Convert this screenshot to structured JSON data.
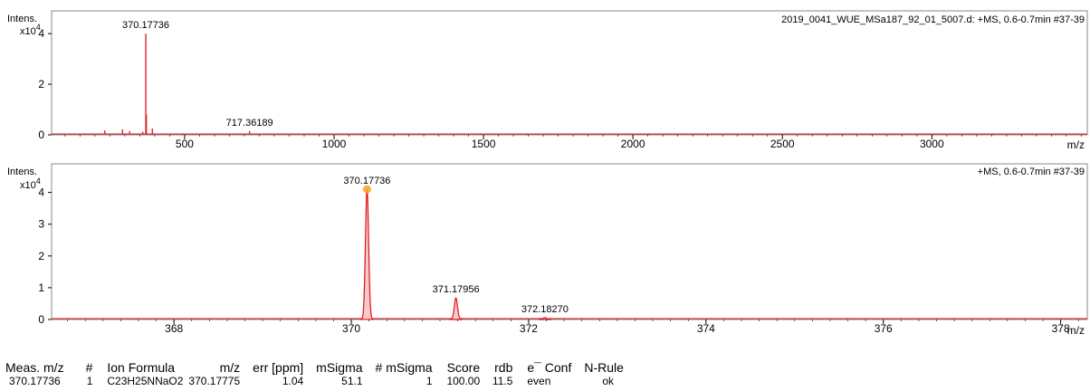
{
  "chart_data": [
    {
      "type": "line",
      "ylabel": "Intens.",
      "ymult": "x10",
      "yexp": "4",
      "xlabel": "m/z",
      "title": "2019_0041_WUE_MSa187_92_01_5007.d: +MS, 0.6-0.7min #37-39",
      "xlim": [
        55,
        3520
      ],
      "ylim": [
        0,
        4.9
      ],
      "xticks": [
        500,
        1000,
        1500,
        2000,
        2500,
        3000
      ],
      "yticks": [
        0,
        2,
        4
      ],
      "grid": false,
      "series": [
        {
          "color": "#e0111b",
          "peaks": [
            {
              "x": 233,
              "y": 0.18
            },
            {
              "x": 292,
              "y": 0.22
            },
            {
              "x": 316,
              "y": 0.15
            },
            {
              "x": 360,
              "y": 0.12
            },
            {
              "x": 370.17736,
              "y": 4.0
            },
            {
              "x": 372,
              "y": 0.8
            },
            {
              "x": 392,
              "y": 0.25
            },
            {
              "x": 660,
              "y": 0.05
            },
            {
              "x": 717.36189,
              "y": 0.15
            },
            {
              "x": 1100,
              "y": 0.03
            },
            {
              "x": 1400,
              "y": 0.03
            }
          ]
        }
      ],
      "annotations": [
        {
          "x": 370.17736,
          "y": 4.0,
          "text": "370.17736"
        },
        {
          "x": 717.36189,
          "y": 0.15,
          "text": "717.36189"
        }
      ]
    },
    {
      "type": "area",
      "ylabel": "Intens.",
      "ymult": "x10",
      "yexp": "4",
      "xlabel": "m/z",
      "title": "+MS, 0.6-0.7min #37-39",
      "xlim": [
        366.62,
        378.3
      ],
      "ylim": [
        0,
        4.9
      ],
      "xticks": [
        368,
        370,
        372,
        374,
        376,
        378
      ],
      "yticks": [
        0,
        1,
        2,
        3,
        4
      ],
      "grid": false,
      "series": [
        {
          "color": "#e0111b",
          "peaks": [
            {
              "x": 370.17736,
              "y": 4.1,
              "w": 0.018
            },
            {
              "x": 371.17956,
              "y": 0.68,
              "w": 0.018
            },
            {
              "x": 372.1827,
              "y": 0.06,
              "w": 0.018
            }
          ]
        }
      ],
      "annotations": [
        {
          "x": 370.17736,
          "y": 4.1,
          "text": "370.17736"
        },
        {
          "x": 371.17956,
          "y": 0.68,
          "text": "371.17956"
        },
        {
          "x": 372.1827,
          "y": 0.06,
          "text": "372.18270"
        }
      ],
      "marker": {
        "x": 370.17736,
        "y": 4.1,
        "color": "#f5a623"
      }
    }
  ],
  "results": {
    "headers": [
      "Meas. m/z",
      "#",
      "Ion Formula",
      "m/z",
      "err [ppm]",
      "mSigma",
      "# mSigma",
      "Score",
      "rdb",
      "e¯ Conf",
      "N-Rule"
    ],
    "rows": [
      [
        "370.17736",
        "1",
        "C23H25NNaO2",
        "370.17775",
        "1.04",
        "51.1",
        "1",
        "100.00",
        "11.5",
        "even",
        "ok"
      ]
    ]
  }
}
